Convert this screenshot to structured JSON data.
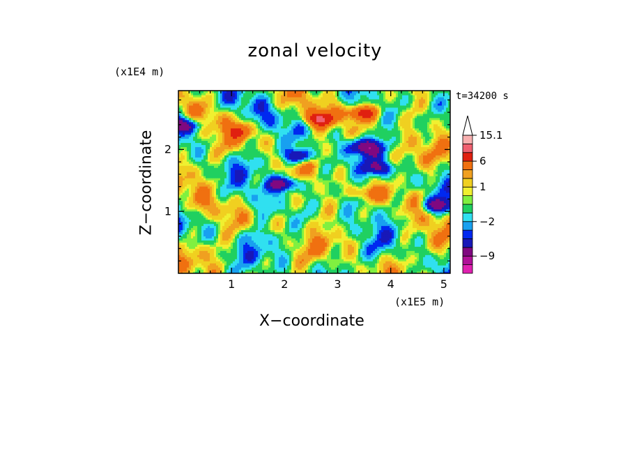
{
  "chart_data": {
    "type": "heatmap",
    "title": "zonal velocity",
    "xlabel": "X−coordinate",
    "ylabel": "Z−coordinate",
    "x_unit_label": "(x1E5 m)",
    "y_unit_label": "(x1E4 m)",
    "time_label": "t=34200 s",
    "xlim": [
      0,
      5.12
    ],
    "ylim": [
      0,
      2.95
    ],
    "x_ticks": [
      1,
      2,
      3,
      4,
      5
    ],
    "y_ticks": [
      1,
      2
    ],
    "colorbar": {
      "levels": [
        -15,
        -12,
        -9,
        -6,
        -4,
        -3,
        -2,
        -1,
        0,
        0.5,
        1,
        2,
        3,
        6,
        9,
        12,
        15.1
      ],
      "colors": [
        "#e020b0",
        "#b01098",
        "#800880",
        "#1818b8",
        "#0028f0",
        "#18a0f0",
        "#30e0f0",
        "#20d060",
        "#80f040",
        "#f0f030",
        "#f0d020",
        "#f0a020",
        "#f07010",
        "#e02010",
        "#f06070",
        "#f8b0b0"
      ],
      "tick_labels": [
        "15.1",
        "6",
        "1",
        "−2",
        "−9"
      ],
      "tick_values": [
        15.1,
        6,
        1,
        -2,
        -9
      ],
      "extend": "max"
    },
    "features": [
      {
        "x": 2.3,
        "z": 1.9,
        "value": -6
      },
      {
        "x": 2.0,
        "z": 1.45,
        "value": -6
      },
      {
        "x": 3.5,
        "z": 2.05,
        "value": -6
      },
      {
        "x": 3.8,
        "z": 1.7,
        "value": -4
      },
      {
        "x": 0.1,
        "z": 2.4,
        "value": -6
      },
      {
        "x": 4.9,
        "z": 1.1,
        "value": -6
      },
      {
        "x": 2.65,
        "z": 2.5,
        "value": 6
      },
      {
        "x": 3.45,
        "z": 2.6,
        "value": 6
      },
      {
        "x": 1.2,
        "z": 2.3,
        "value": 3
      },
      {
        "x": 3.6,
        "z": 1.3,
        "value": 3
      },
      {
        "x": 1.5,
        "z": 0.6,
        "value": -1
      },
      {
        "x": 3.2,
        "z": 0.5,
        "value": 0.5
      }
    ]
  }
}
